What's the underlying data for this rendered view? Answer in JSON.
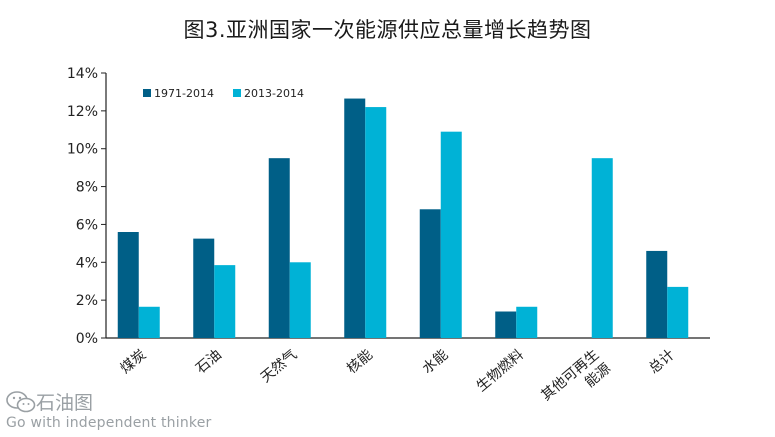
{
  "chart_data": {
    "type": "bar",
    "title": "图3.亚洲国家一次能源供应总量增长趋势图",
    "categories": [
      "煤炭",
      "石油",
      "天然气",
      "核能",
      "水能",
      "生物燃料",
      "其他可再生能源",
      "总计"
    ],
    "category_lines": [
      [
        "煤炭"
      ],
      [
        "石油"
      ],
      [
        "天然气"
      ],
      [
        "核能"
      ],
      [
        "水能"
      ],
      [
        "生物燃料"
      ],
      [
        "其他可再生",
        "能源"
      ],
      [
        "总计"
      ]
    ],
    "series": [
      {
        "name": "1971-2014",
        "color": "#005f87",
        "values": [
          5.6,
          5.25,
          9.5,
          12.65,
          6.8,
          1.4,
          null,
          4.6
        ]
      },
      {
        "name": "2013-2014",
        "color": "#00b2d6",
        "values": [
          1.65,
          3.85,
          4.0,
          12.2,
          10.9,
          1.65,
          9.5,
          2.7
        ]
      }
    ],
    "ylim": [
      0,
      14
    ],
    "yticks": [
      "0%",
      "2%",
      "4%",
      "6%",
      "8%",
      "10%",
      "12%",
      "14%"
    ],
    "ylabel": "",
    "xlabel": "",
    "legend_position": "top-left",
    "grid": false
  },
  "watermark": {
    "name": "石油图",
    "tagline": "Go with independent thinker"
  }
}
